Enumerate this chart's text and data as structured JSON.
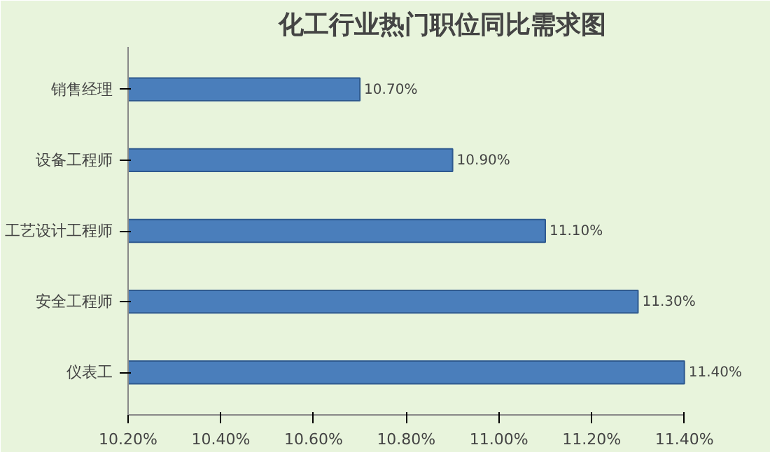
{
  "chart_data": {
    "type": "bar",
    "orientation": "horizontal",
    "title": "化工行业热门职位同比需求图",
    "categories": [
      "销售经理",
      "设备工程师",
      "工艺设计工程师",
      "安全工程师",
      "仪表工"
    ],
    "values": [
      10.7,
      10.9,
      11.1,
      11.3,
      11.4
    ],
    "value_labels": [
      "10.70%",
      "10.90%",
      "11.10%",
      "11.30%",
      "11.40%"
    ],
    "color": "#4a7ebb",
    "xlim": [
      10.2,
      11.4
    ],
    "xticks": [
      {
        "value": 10.2,
        "label": "10.20%"
      },
      {
        "value": 10.4,
        "label": "10.40%"
      },
      {
        "value": 10.6,
        "label": "10.60%"
      },
      {
        "value": 10.8,
        "label": "10.80%"
      },
      {
        "value": 11.0,
        "label": "11.00%"
      },
      {
        "value": 11.2,
        "label": "11.20%"
      },
      {
        "value": 11.4,
        "label": "11.40%"
      }
    ],
    "grid": false
  }
}
